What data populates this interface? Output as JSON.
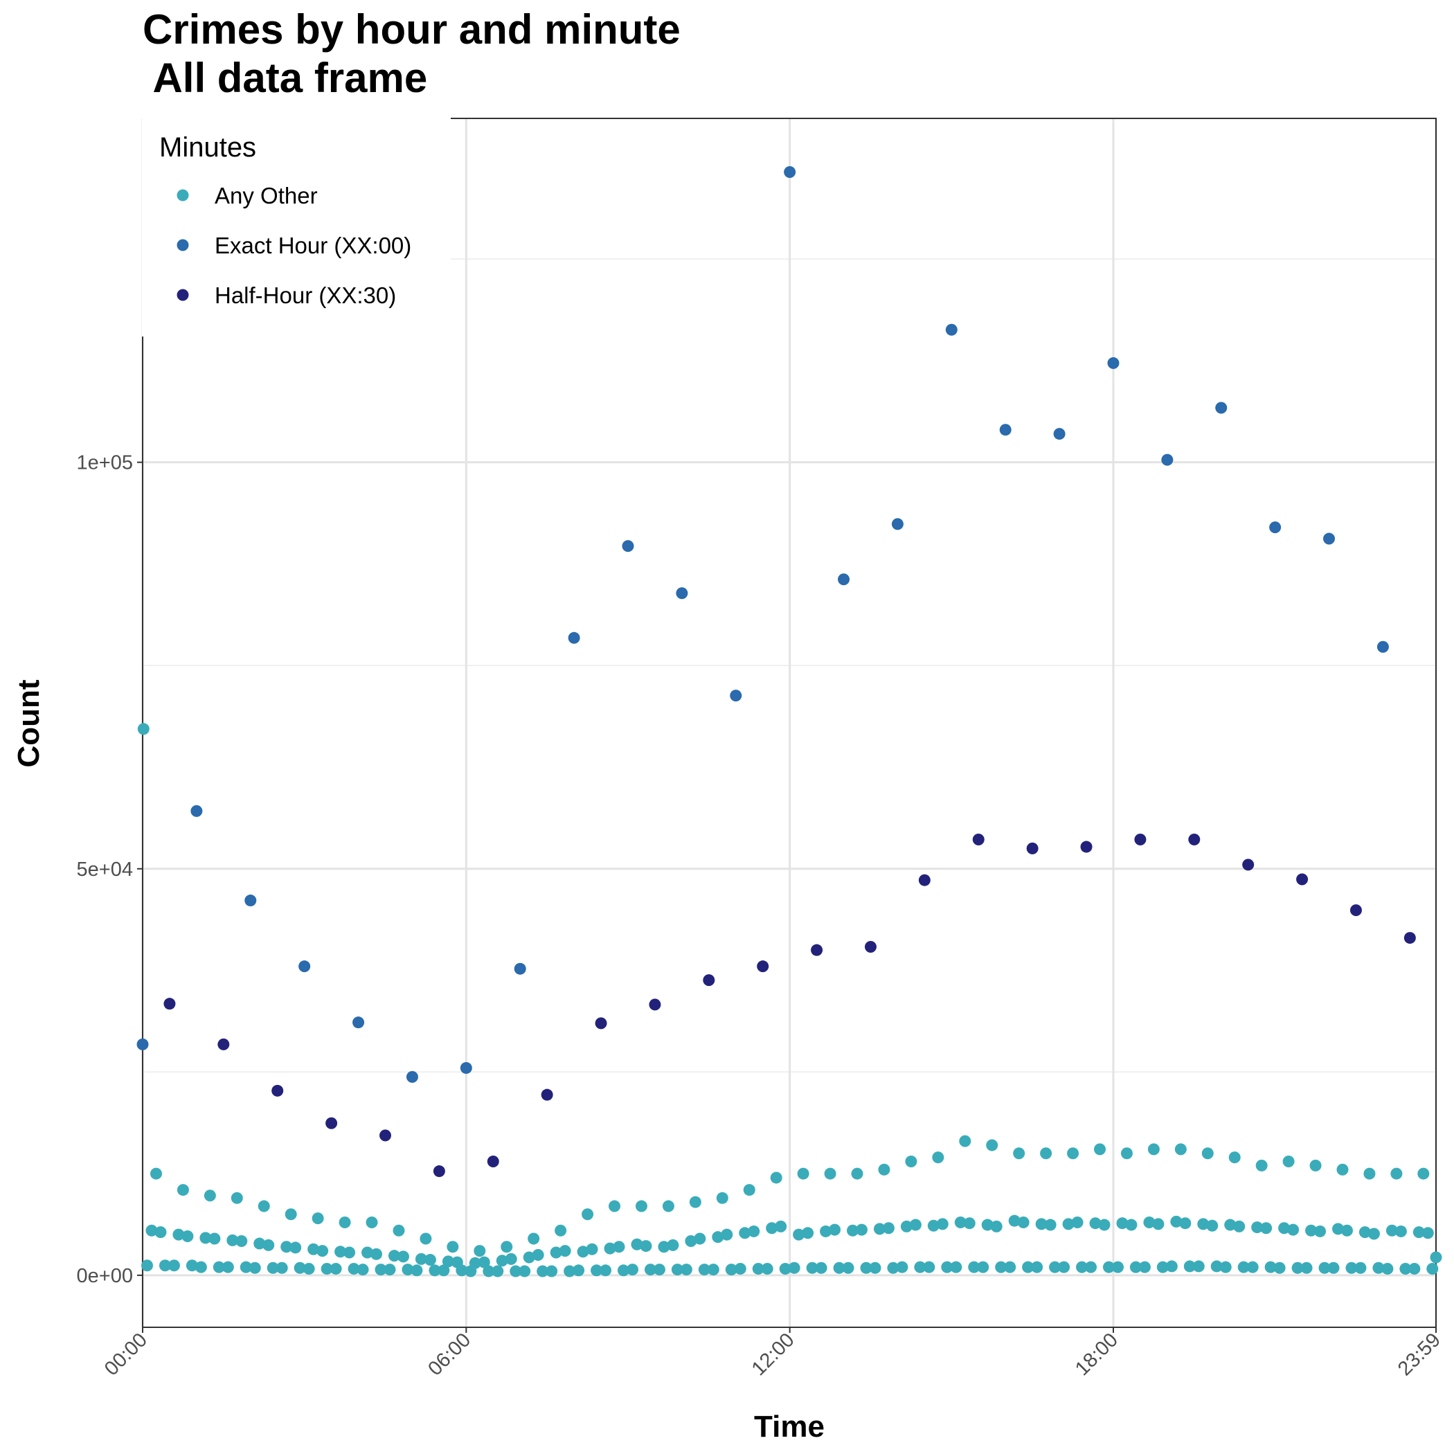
{
  "chart_data": {
    "type": "scatter",
    "title": "Crimes by hour and minute\n All data frame",
    "x_label": "Time",
    "y_label": "Count",
    "xlim": [
      "00:00",
      "23:59"
    ],
    "xticks": [
      "00:00",
      "06:00",
      "12:00",
      "18:00",
      "23:59"
    ],
    "ylim": [
      -6400,
      142300
    ],
    "yticks": [
      {
        "value": 0,
        "label": "0e+00"
      },
      {
        "value": 50000,
        "label": "5e+04"
      },
      {
        "value": 100000,
        "label": "1e+05"
      }
    ],
    "yminorticks": [
      25000,
      75000,
      125000
    ],
    "grid": true,
    "legend_title": "Minutes",
    "legend_position": "top-left",
    "series": [
      {
        "name": "Any Other",
        "color": "#3aacb9",
        "x": [
          "00:01",
          "00:05",
          "00:10",
          "00:15",
          "00:20",
          "00:25",
          "00:35",
          "00:40",
          "00:45",
          "00:50",
          "00:55",
          "01:05",
          "01:10",
          "01:15",
          "01:20",
          "01:25",
          "01:35",
          "01:40",
          "01:45",
          "01:50",
          "01:55",
          "02:05",
          "02:10",
          "02:15",
          "02:20",
          "02:25",
          "02:35",
          "02:40",
          "02:45",
          "02:50",
          "02:55",
          "03:05",
          "03:10",
          "03:15",
          "03:20",
          "03:25",
          "03:35",
          "03:40",
          "03:45",
          "03:50",
          "03:55",
          "04:05",
          "04:10",
          "04:15",
          "04:20",
          "04:25",
          "04:35",
          "04:40",
          "04:45",
          "04:50",
          "04:55",
          "05:05",
          "05:10",
          "05:15",
          "05:20",
          "05:25",
          "05:35",
          "05:40",
          "05:45",
          "05:50",
          "05:55",
          "06:05",
          "06:10",
          "06:15",
          "06:20",
          "06:25",
          "06:35",
          "06:40",
          "06:45",
          "06:50",
          "06:55",
          "07:05",
          "07:10",
          "07:15",
          "07:20",
          "07:25",
          "07:35",
          "07:40",
          "07:45",
          "07:50",
          "07:55",
          "08:05",
          "08:10",
          "08:15",
          "08:20",
          "08:25",
          "08:35",
          "08:40",
          "08:45",
          "08:50",
          "08:55",
          "09:05",
          "09:10",
          "09:15",
          "09:20",
          "09:25",
          "09:35",
          "09:40",
          "09:45",
          "09:50",
          "09:55",
          "10:05",
          "10:10",
          "10:15",
          "10:20",
          "10:25",
          "10:35",
          "10:40",
          "10:45",
          "10:50",
          "10:55",
          "11:05",
          "11:10",
          "11:15",
          "11:20",
          "11:25",
          "11:35",
          "11:40",
          "11:45",
          "11:50",
          "11:55",
          "12:05",
          "12:10",
          "12:15",
          "12:20",
          "12:25",
          "12:35",
          "12:40",
          "12:45",
          "12:50",
          "12:55",
          "13:05",
          "13:10",
          "13:15",
          "13:20",
          "13:25",
          "13:35",
          "13:40",
          "13:45",
          "13:50",
          "13:55",
          "14:05",
          "14:10",
          "14:15",
          "14:20",
          "14:25",
          "14:35",
          "14:40",
          "14:45",
          "14:50",
          "14:55",
          "15:05",
          "15:10",
          "15:15",
          "15:20",
          "15:25",
          "15:35",
          "15:40",
          "15:45",
          "15:50",
          "15:55",
          "16:05",
          "16:10",
          "16:15",
          "16:20",
          "16:25",
          "16:35",
          "16:40",
          "16:45",
          "16:50",
          "16:55",
          "17:05",
          "17:10",
          "17:15",
          "17:20",
          "17:25",
          "17:35",
          "17:40",
          "17:45",
          "17:50",
          "17:55",
          "18:05",
          "18:10",
          "18:15",
          "18:20",
          "18:25",
          "18:35",
          "18:40",
          "18:45",
          "18:50",
          "18:55",
          "19:05",
          "19:10",
          "19:15",
          "19:20",
          "19:25",
          "19:35",
          "19:40",
          "19:45",
          "19:50",
          "19:55",
          "20:05",
          "20:10",
          "20:15",
          "20:20",
          "20:25",
          "20:35",
          "20:40",
          "20:45",
          "20:50",
          "20:55",
          "21:05",
          "21:10",
          "21:15",
          "21:20",
          "21:25",
          "21:35",
          "21:40",
          "21:45",
          "21:50",
          "21:55",
          "22:05",
          "22:10",
          "22:15",
          "22:20",
          "22:25",
          "22:35",
          "22:40",
          "22:45",
          "22:50",
          "22:55",
          "23:05",
          "23:10",
          "23:15",
          "23:20",
          "23:25",
          "23:35",
          "23:40",
          "23:45",
          "23:50",
          "23:55",
          "23:59"
        ],
        "values": [
          67200,
          1200,
          5500,
          12500,
          5300,
          1200,
          1200,
          5000,
          10500,
          4800,
          1200,
          1000,
          4600,
          9800,
          4500,
          1000,
          1000,
          4300,
          9500,
          4200,
          1000,
          900,
          3900,
          8500,
          3700,
          900,
          900,
          3500,
          7500,
          3400,
          900,
          800,
          3200,
          7000,
          3000,
          800,
          800,
          2900,
          6500,
          2800,
          800,
          700,
          2800,
          6500,
          2600,
          700,
          700,
          2400,
          5500,
          2300,
          700,
          600,
          2000,
          4500,
          1900,
          600,
          600,
          1700,
          3500,
          1600,
          600,
          500,
          1500,
          3000,
          1600,
          500,
          500,
          1800,
          3500,
          2000,
          500,
          500,
          2200,
          4500,
          2500,
          500,
          500,
          2800,
          5500,
          3000,
          500,
          600,
          2900,
          7500,
          3200,
          600,
          600,
          3300,
          8500,
          3500,
          600,
          700,
          3800,
          8500,
          3600,
          700,
          700,
          3500,
          8500,
          3700,
          700,
          700,
          4200,
          9000,
          4500,
          700,
          700,
          4700,
          9500,
          5000,
          700,
          800,
          5200,
          10500,
          5400,
          800,
          800,
          5800,
          12000,
          6000,
          800,
          900,
          5000,
          12500,
          5200,
          900,
          900,
          5400,
          12500,
          5600,
          900,
          900,
          5500,
          12500,
          5600,
          900,
          900,
          5700,
          13000,
          5800,
          900,
          1000,
          6000,
          14000,
          6200,
          1000,
          1000,
          6100,
          14500,
          6300,
          1000,
          1000,
          6500,
          16500,
          6400,
          1000,
          1000,
          6200,
          16000,
          6000,
          1000,
          1000,
          6700,
          15000,
          6500,
          1000,
          1000,
          6300,
          15000,
          6200,
          1000,
          1000,
          6300,
          15000,
          6500,
          1000,
          1000,
          6400,
          15500,
          6200,
          1000,
          1000,
          6400,
          15000,
          6200,
          1000,
          1000,
          6500,
          15500,
          6300,
          1000,
          1100,
          6600,
          15500,
          6400,
          1100,
          1100,
          6300,
          15000,
          6100,
          1100,
          1000,
          6200,
          14500,
          6000,
          1000,
          1000,
          5900,
          13500,
          5800,
          1000,
          900,
          5800,
          14000,
          5600,
          900,
          900,
          5500,
          13500,
          5400,
          900,
          900,
          5700,
          13000,
          5500,
          900,
          900,
          5300,
          12500,
          5100,
          900,
          800,
          5500,
          12500,
          5400,
          800,
          800,
          5300,
          12500,
          5200,
          800,
          2200
        ]
      },
      {
        "name": "Exact Hour (XX:00)",
        "color": "#2a6aad",
        "x": [
          "00:00",
          "01:00",
          "02:00",
          "03:00",
          "04:00",
          "05:00",
          "06:00",
          "07:00",
          "08:00",
          "09:00",
          "10:00",
          "11:00",
          "12:00",
          "13:00",
          "14:00",
          "15:00",
          "16:00",
          "17:00",
          "18:00",
          "19:00",
          "20:00",
          "21:00",
          "22:00",
          "23:00"
        ],
        "values": [
          28400,
          57100,
          46100,
          38000,
          31100,
          24400,
          25500,
          37700,
          78400,
          89700,
          83900,
          71300,
          135700,
          85600,
          92400,
          116300,
          104000,
          103500,
          112200,
          100300,
          106700,
          92000,
          90600,
          77300
        ]
      },
      {
        "name": "Half-Hour (XX:30)",
        "color": "#23227a",
        "x": [
          "00:30",
          "01:30",
          "02:30",
          "03:30",
          "04:30",
          "05:30",
          "06:30",
          "07:30",
          "08:30",
          "09:30",
          "10:30",
          "11:30",
          "12:30",
          "13:30",
          "14:30",
          "15:30",
          "16:30",
          "17:30",
          "18:30",
          "19:30",
          "20:30",
          "21:30",
          "22:30",
          "23:30"
        ],
        "values": [
          33400,
          28400,
          22700,
          18700,
          17200,
          12800,
          14000,
          22200,
          31000,
          33300,
          36300,
          38000,
          40000,
          40400,
          48600,
          53600,
          52500,
          52700,
          53600,
          53600,
          50500,
          48700,
          44900,
          41500
        ]
      }
    ]
  }
}
